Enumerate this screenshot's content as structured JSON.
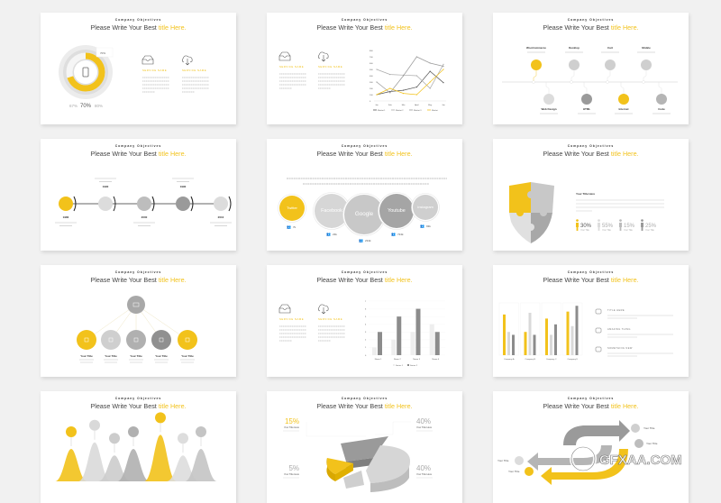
{
  "common": {
    "kicker": "Company Objectives",
    "title_main": "Please Write Your Best ",
    "title_highlight": "title Here."
  },
  "colors": {
    "accent": "#f2c21b",
    "gray_light": "#d9d9d9",
    "gray_mid": "#b5b5b5",
    "gray_dark": "#8c8c8c",
    "text": "#444444"
  },
  "slide1": {
    "callout": "70%",
    "progress_percent": 70,
    "stats": [
      "67%",
      "70%",
      "80%"
    ],
    "services": [
      {
        "icon": "inbox-tray-icon",
        "name": "SERVICE NAME"
      },
      {
        "icon": "cloud-download-icon",
        "name": "SERVICE NAME"
      }
    ]
  },
  "slide2": {
    "services": [
      {
        "icon": "inbox-tray-icon",
        "name": "SERVICE NAME"
      },
      {
        "icon": "cloud-download-icon",
        "name": "SERVICE NAME"
      }
    ],
    "chart_data": {
      "type": "line",
      "x": [
        "Jan",
        "Feb",
        "Mar",
        "April",
        "May",
        "Jun"
      ],
      "ylim": [
        0,
        800
      ],
      "yticks": [
        0,
        100,
        200,
        300,
        400,
        500,
        600,
        700,
        800
      ],
      "series": [
        {
          "name": "Market 1",
          "color": "#555555",
          "values": [
            100,
            150,
            170,
            220,
            470,
            290
          ]
        },
        {
          "name": "Market 2",
          "color": "#aaaaaa",
          "values": [
            500,
            420,
            410,
            400,
            200,
            580
          ]
        },
        {
          "name": "Market 3",
          "color": "#999999",
          "values": [
            300,
            130,
            400,
            700,
            600,
            550
          ]
        },
        {
          "name": "Market",
          "color": "#f2c21b",
          "values": [
            100,
            200,
            120,
            100,
            300,
            500
          ]
        }
      ]
    }
  },
  "slide3": {
    "top": [
      {
        "label": "WooCommerce",
        "accent": true
      },
      {
        "label": "Desktop"
      },
      {
        "label": "Cart"
      },
      {
        "label": "Mobile"
      }
    ],
    "bottom": [
      {
        "label": "Web Design"
      },
      {
        "label": "HTML"
      },
      {
        "label": "Internet",
        "accent": true
      },
      {
        "label": "Code"
      }
    ]
  },
  "slide4": {
    "steps": [
      {
        "year": "1980",
        "icon": "book-icon",
        "pos": "bottom"
      },
      {
        "year": "1990",
        "icon": "gauge-icon",
        "pos": "top"
      },
      {
        "year": "2000",
        "icon": "graduation-cap-icon",
        "pos": "bottom"
      },
      {
        "year": "1990",
        "icon": "compass-icon",
        "pos": "top"
      },
      {
        "year": "2010",
        "icon": "gauge-icon",
        "pos": "bottom"
      }
    ]
  },
  "slide5": {
    "bubbles": [
      {
        "label": "Twitter",
        "count": "7k"
      },
      {
        "label": "Facebook",
        "count": "23k"
      },
      {
        "label": "Google",
        "count": "234k"
      },
      {
        "label": "Youtube",
        "count": "724k"
      },
      {
        "label": "Instagram",
        "count": "93k"
      }
    ]
  },
  "slide6": {
    "heading": "Your Title Here",
    "stats": [
      {
        "value": "30%",
        "label": "Your Title"
      },
      {
        "value": "55%",
        "label": "Your Title"
      },
      {
        "value": "15%",
        "label": "Your Title"
      },
      {
        "value": "25%",
        "label": "Your Title"
      }
    ]
  },
  "slide7": {
    "top_icon": "camera-icon",
    "items": [
      {
        "title": "Your Title",
        "icon": "document-icon"
      },
      {
        "title": "Your Title",
        "icon": "music-icon"
      },
      {
        "title": "Your Title",
        "icon": "file-icon"
      },
      {
        "title": "Your Title",
        "icon": "lightbulb-icon"
      },
      {
        "title": "Your Title",
        "icon": "monitor-icon"
      }
    ]
  },
  "slide8": {
    "services": [
      {
        "icon": "inbox-tray-icon",
        "name": "SERVICE NAME"
      },
      {
        "icon": "cloud-download-icon",
        "name": "SERVICE NAME"
      }
    ],
    "chart_data": {
      "type": "bar",
      "categories": [
        "Name 1",
        "Name 2",
        "Name 3",
        "Name 4"
      ],
      "ylim": [
        0,
        7
      ],
      "yticks": [
        0,
        1,
        2,
        3,
        4,
        5,
        6,
        7
      ],
      "series": [
        {
          "name": "Series 1",
          "color": "#eeeeee",
          "values": [
            1,
            2,
            3,
            4
          ]
        },
        {
          "name": "Series 2",
          "color": "#8c8c8c",
          "values": [
            3,
            5,
            6,
            3
          ]
        }
      ]
    }
  },
  "slide9": {
    "chart_data": {
      "type": "bar",
      "categories": [
        "Company A",
        "Company B",
        "Company C",
        "Company D"
      ],
      "series": [
        {
          "color": "#f2c21b",
          "values": [
            7,
            4,
            6.3,
            7.5
          ]
        },
        {
          "color": "#d9d9d9",
          "values": [
            4,
            7.3,
            3.5,
            5
          ]
        },
        {
          "color": "#8c8c8c",
          "values": [
            3.5,
            3.5,
            5.3,
            8.5
          ]
        }
      ],
      "ylim": [
        0,
        9
      ]
    },
    "items": [
      {
        "icon": "laptop-icon",
        "title": "TITLE HERE"
      },
      {
        "icon": "megaphone-icon",
        "title": "AMAZING THING"
      },
      {
        "icon": "globe-icon",
        "title": "SOMETHING NEW"
      }
    ]
  },
  "slide10": {
    "peaks": [
      {
        "color": "#f2c21b",
        "height": 0.6
      },
      {
        "color": "#d9d9d9",
        "height": 0.72
      },
      {
        "color": "#cccccc",
        "height": 0.48
      },
      {
        "color": "#b0b0b0",
        "height": 0.6
      },
      {
        "color": "#f2c21b",
        "height": 0.86
      },
      {
        "color": "#dddddd",
        "height": 0.48
      },
      {
        "color": "#c4c4c4",
        "height": 0.6
      }
    ]
  },
  "slide11": {
    "labels": [
      {
        "value": "15%",
        "title": "Your Title Here",
        "accent": true
      },
      {
        "value": "40%",
        "title": "Your Title Here"
      },
      {
        "value": "5%",
        "title": "Your Title Here"
      },
      {
        "value": "40%",
        "title": "Your Title Here"
      }
    ]
  },
  "slide12": {
    "labels": [
      "Your Title",
      "Your Title",
      "Your Title",
      "Your Title"
    ],
    "watermark": "GFXAA.COM"
  }
}
